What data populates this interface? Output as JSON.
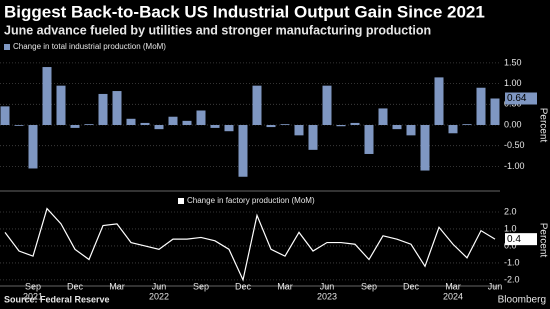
{
  "title": "Biggest Back-to-Back US Industrial Output Gain Since 2021",
  "subtitle": "June advance fueled by utilities and stronger manufacturing production",
  "source": "Source: Federal Reserve",
  "brand": "Bloomberg",
  "chart_data": [
    {
      "type": "bar",
      "y_label": "Percent",
      "series": [
        {
          "name": "Change in total industrial production (MoM)",
          "color": "#7f97c2",
          "values": [
            0.45,
            -0.02,
            -1.05,
            1.4,
            0.95,
            -0.07,
            0.02,
            0.75,
            0.82,
            0.15,
            0.05,
            -0.1,
            0.2,
            0.1,
            0.35,
            -0.07,
            -0.15,
            -1.25,
            0.95,
            -0.05,
            0.02,
            -0.25,
            -0.6,
            0.95,
            -0.03,
            0.05,
            -0.7,
            0.4,
            -0.1,
            -0.25,
            -1.1,
            1.15,
            -0.2,
            0.02,
            0.9,
            0.64
          ]
        }
      ],
      "ylim": [
        -1.57,
        1.57
      ],
      "yticks": [
        {
          "value": 1.5,
          "label": "1.50"
        },
        {
          "value": 1,
          "label": "1.00"
        },
        {
          "value": 0.5,
          "label": "0.50"
        },
        {
          "value": 0,
          "label": "0.00"
        },
        {
          "value": -0.5,
          "label": "-0.50"
        },
        {
          "value": -1,
          "label": "-1.00"
        }
      ],
      "grid": true
    },
    {
      "type": "line",
      "y_label": "Percent",
      "categories": [
        null,
        null,
        "Sep",
        null,
        null,
        "Dec",
        null,
        null,
        "Mar",
        null,
        null,
        "Jun",
        null,
        null,
        "Sep",
        null,
        null,
        "Dec",
        null,
        null,
        "Mar",
        null,
        null,
        "Jun",
        null,
        null,
        "Sep",
        null,
        null,
        "Dec",
        null,
        null,
        "Mar",
        null,
        null,
        "Jun"
      ],
      "years": [
        null,
        null,
        "2021",
        null,
        null,
        null,
        null,
        null,
        null,
        null,
        null,
        "2022",
        null,
        null,
        null,
        null,
        null,
        null,
        null,
        null,
        null,
        null,
        null,
        "2023",
        null,
        null,
        null,
        null,
        null,
        null,
        null,
        null,
        "2024",
        null,
        null,
        null
      ],
      "series": [
        {
          "name": "Change in factory production (MoM)",
          "color": "#ffffff",
          "values": [
            0.8,
            -0.3,
            -0.6,
            2.2,
            1.3,
            -0.2,
            -0.8,
            1.2,
            1.3,
            0.2,
            0.0,
            -0.2,
            0.4,
            0.4,
            0.5,
            0.3,
            -0.2,
            -2.0,
            1.8,
            -0.2,
            -0.6,
            0.8,
            -0.3,
            0.2,
            0.2,
            0.1,
            -0.8,
            0.6,
            0.4,
            0.1,
            -1.2,
            1.1,
            0.1,
            -0.7,
            0.9,
            0.4
          ]
        }
      ],
      "ylim": [
        -2.3,
        3.0
      ],
      "yticks": [
        {
          "value": 2,
          "label": "2.0"
        },
        {
          "value": 1,
          "label": "1.0"
        },
        {
          "value": 0,
          "label": "0.0"
        },
        {
          "value": -1,
          "label": "-1.0"
        },
        {
          "value": -2,
          "label": "-2.0"
        }
      ],
      "grid": true
    }
  ]
}
